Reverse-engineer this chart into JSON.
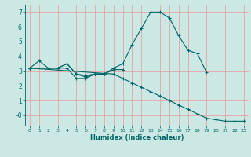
{
  "xlabel": "Humidex (Indice chaleur)",
  "bg_color": "#cce8e4",
  "grid_color": "#e89898",
  "line_color": "#006666",
  "xlim": [
    -0.5,
    23.5
  ],
  "ylim": [
    -0.7,
    7.5
  ],
  "yticks": [
    0,
    1,
    2,
    3,
    4,
    5,
    6,
    7
  ],
  "ytick_labels": [
    "-0",
    "1",
    "2",
    "3",
    "4",
    "5",
    "6",
    "7"
  ],
  "xticks": [
    0,
    1,
    2,
    3,
    4,
    5,
    6,
    7,
    8,
    9,
    10,
    11,
    12,
    13,
    14,
    15,
    16,
    17,
    18,
    19,
    20,
    21,
    22,
    23
  ],
  "series": [
    {
      "x": [
        0,
        1,
        2,
        3,
        4,
        5,
        6,
        7,
        8,
        9,
        10,
        11,
        12,
        13,
        14,
        15,
        16,
        17,
        18,
        19
      ],
      "y": [
        3.2,
        3.7,
        3.2,
        3.2,
        3.5,
        2.8,
        2.7,
        2.8,
        2.8,
        3.2,
        3.5,
        4.8,
        5.9,
        7.0,
        7.0,
        6.6,
        5.4,
        4.4,
        4.2,
        2.9
      ]
    },
    {
      "x": [
        0,
        3,
        4,
        5,
        6,
        7,
        8
      ],
      "y": [
        3.2,
        3.2,
        3.2,
        2.5,
        2.5,
        2.8,
        2.8
      ]
    },
    {
      "x": [
        0,
        3,
        4,
        5,
        6,
        7,
        8,
        9,
        10
      ],
      "y": [
        3.2,
        3.2,
        3.5,
        2.8,
        2.6,
        2.8,
        2.8,
        3.1,
        3.1
      ]
    },
    {
      "x": [
        0,
        9,
        10,
        11,
        12,
        13,
        14,
        15,
        16,
        17,
        18,
        19,
        20,
        21,
        22,
        23
      ],
      "y": [
        3.2,
        2.8,
        2.5,
        2.2,
        1.9,
        1.6,
        1.3,
        1.0,
        0.7,
        0.4,
        0.1,
        -0.2,
        -0.3,
        -0.4,
        -0.4,
        -0.4
      ]
    }
  ]
}
